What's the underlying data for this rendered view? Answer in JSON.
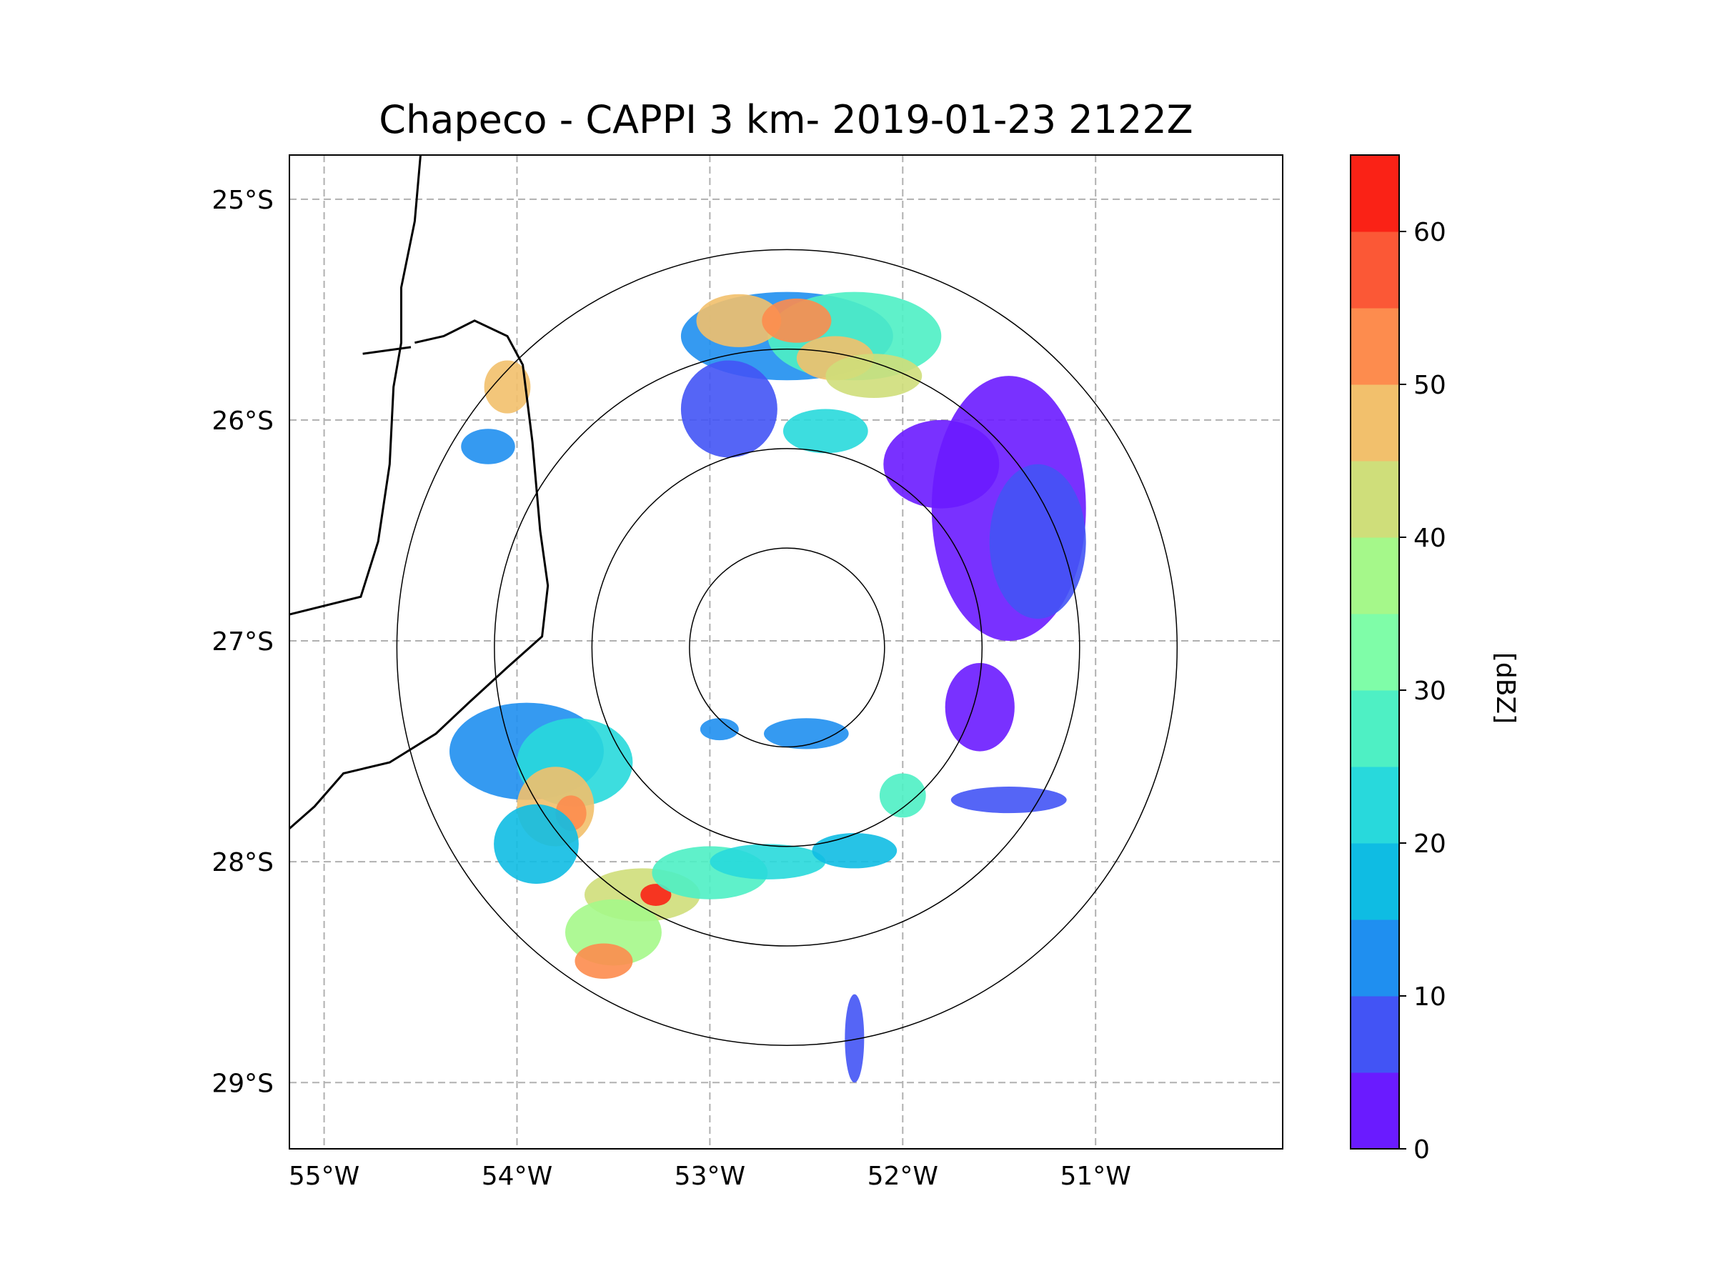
{
  "figure": {
    "title": "Chapeco - CAPPI 3 km- 2019-01-23 2122Z",
    "station": "Chapeco",
    "product": "CAPPI 3 km",
    "timestamp": "2019-01-23 2122Z"
  },
  "map": {
    "lon_range": [
      -55.18,
      -50.03
    ],
    "lat_range": [
      -29.3,
      -24.8
    ],
    "radar_center": {
      "lon": -52.6,
      "lat": -27.03
    },
    "range_rings_km": [
      50,
      100,
      150,
      200
    ],
    "lat_ticks": [
      {
        "value": -25,
        "label": "25°S"
      },
      {
        "value": -26,
        "label": "26°S"
      },
      {
        "value": -27,
        "label": "27°S"
      },
      {
        "value": -28,
        "label": "28°S"
      },
      {
        "value": -29,
        "label": "29°S"
      }
    ],
    "lon_ticks": [
      {
        "value": -55,
        "label": "55°W"
      },
      {
        "value": -54,
        "label": "54°W"
      },
      {
        "value": -53,
        "label": "53°W"
      },
      {
        "value": -52,
        "label": "52°W"
      },
      {
        "value": -51,
        "label": "51°W"
      }
    ],
    "gridlines": true,
    "borders": [
      {
        "name": "argentina-brazil-border",
        "points": [
          [
            -54.5,
            -24.8
          ],
          [
            -54.53,
            -25.1
          ],
          [
            -54.6,
            -25.4
          ],
          [
            -54.6,
            -25.65
          ],
          [
            -54.64,
            -25.85
          ],
          [
            -54.66,
            -26.2
          ],
          [
            -54.72,
            -26.55
          ],
          [
            -54.81,
            -26.8
          ],
          [
            -55.18,
            -26.88
          ]
        ]
      },
      {
        "name": "misiones-outline-border",
        "points": [
          [
            -55.18,
            -27.85
          ],
          [
            -55.05,
            -27.75
          ],
          [
            -54.9,
            -27.6
          ],
          [
            -54.66,
            -27.55
          ],
          [
            -54.42,
            -27.42
          ],
          [
            -54.25,
            -27.28
          ],
          [
            -54.05,
            -27.12
          ],
          [
            -53.87,
            -26.98
          ],
          [
            -53.84,
            -26.75
          ],
          [
            -53.88,
            -26.5
          ],
          [
            -53.92,
            -26.1
          ],
          [
            -53.97,
            -25.75
          ],
          [
            -54.05,
            -25.62
          ],
          [
            -54.22,
            -25.55
          ],
          [
            -54.38,
            -25.62
          ],
          [
            -54.53,
            -25.65
          ]
        ]
      },
      {
        "name": "northeast-argentina-border",
        "points": [
          [
            -54.55,
            -25.67
          ],
          [
            -54.8,
            -25.7
          ]
        ]
      }
    ]
  },
  "reflectivity_cells": [
    {
      "lon": -52.6,
      "lat": -25.62,
      "rx": 0.55,
      "ry": 0.2,
      "dbz": 12
    },
    {
      "lon": -52.25,
      "lat": -25.62,
      "rx": 0.45,
      "ry": 0.2,
      "dbz": 28
    },
    {
      "lon": -52.85,
      "lat": -25.55,
      "rx": 0.22,
      "ry": 0.12,
      "dbz": 48
    },
    {
      "lon": -52.55,
      "lat": -25.55,
      "rx": 0.18,
      "ry": 0.1,
      "dbz": 50
    },
    {
      "lon": -52.35,
      "lat": -25.72,
      "rx": 0.2,
      "ry": 0.1,
      "dbz": 46
    },
    {
      "lon": -52.15,
      "lat": -25.8,
      "rx": 0.25,
      "ry": 0.1,
      "dbz": 40
    },
    {
      "lon": -52.9,
      "lat": -25.95,
      "rx": 0.25,
      "ry": 0.22,
      "dbz": 5
    },
    {
      "lon": -52.4,
      "lat": -26.05,
      "rx": 0.22,
      "ry": 0.1,
      "dbz": 22
    },
    {
      "lon": -51.45,
      "lat": -26.4,
      "rx": 0.4,
      "ry": 0.6,
      "dbz": 3
    },
    {
      "lon": -51.3,
      "lat": -26.55,
      "rx": 0.25,
      "ry": 0.35,
      "dbz": 8
    },
    {
      "lon": -51.8,
      "lat": -26.2,
      "rx": 0.3,
      "ry": 0.2,
      "dbz": 4
    },
    {
      "lon": -54.05,
      "lat": -25.85,
      "rx": 0.12,
      "ry": 0.12,
      "dbz": 46
    },
    {
      "lon": -54.15,
      "lat": -26.12,
      "rx": 0.14,
      "ry": 0.08,
      "dbz": 10
    },
    {
      "lon": -51.6,
      "lat": -27.3,
      "rx": 0.18,
      "ry": 0.2,
      "dbz": 3
    },
    {
      "lon": -53.95,
      "lat": -27.5,
      "rx": 0.4,
      "ry": 0.22,
      "dbz": 14
    },
    {
      "lon": -53.7,
      "lat": -27.55,
      "rx": 0.3,
      "ry": 0.2,
      "dbz": 24
    },
    {
      "lon": -53.8,
      "lat": -27.75,
      "rx": 0.2,
      "ry": 0.18,
      "dbz": 46
    },
    {
      "lon": -53.72,
      "lat": -27.78,
      "rx": 0.08,
      "ry": 0.08,
      "dbz": 52
    },
    {
      "lon": -53.9,
      "lat": -27.92,
      "rx": 0.22,
      "ry": 0.18,
      "dbz": 18
    },
    {
      "lon": -53.35,
      "lat": -28.15,
      "rx": 0.3,
      "ry": 0.12,
      "dbz": 40
    },
    {
      "lon": -53.28,
      "lat": -28.15,
      "rx": 0.08,
      "ry": 0.05,
      "dbz": 60
    },
    {
      "lon": -53.5,
      "lat": -28.32,
      "rx": 0.25,
      "ry": 0.15,
      "dbz": 36
    },
    {
      "lon": -53.55,
      "lat": -28.45,
      "rx": 0.15,
      "ry": 0.08,
      "dbz": 50
    },
    {
      "lon": -53.0,
      "lat": -28.05,
      "rx": 0.3,
      "ry": 0.12,
      "dbz": 28
    },
    {
      "lon": -52.7,
      "lat": -28.0,
      "rx": 0.3,
      "ry": 0.08,
      "dbz": 24
    },
    {
      "lon": -52.25,
      "lat": -27.95,
      "rx": 0.22,
      "ry": 0.08,
      "dbz": 18
    },
    {
      "lon": -52.5,
      "lat": -27.42,
      "rx": 0.22,
      "ry": 0.07,
      "dbz": 14
    },
    {
      "lon": -52.95,
      "lat": -27.4,
      "rx": 0.1,
      "ry": 0.05,
      "dbz": 10
    },
    {
      "lon": -52.0,
      "lat": -27.7,
      "rx": 0.12,
      "ry": 0.1,
      "dbz": 28
    },
    {
      "lon": -51.45,
      "lat": -27.72,
      "rx": 0.3,
      "ry": 0.06,
      "dbz": 8
    },
    {
      "lon": -52.25,
      "lat": -28.8,
      "rx": 0.05,
      "ry": 0.2,
      "dbz": 6
    }
  ],
  "colorbar": {
    "label": "[dBZ]",
    "min": 0,
    "max": 65,
    "tick_values": [
      0,
      10,
      20,
      30,
      40,
      50,
      60
    ],
    "tick_labels": [
      "0",
      "10",
      "20",
      "30",
      "40",
      "50",
      "60"
    ],
    "levels": [
      {
        "from": 0,
        "to": 5,
        "color": "#6a1bff"
      },
      {
        "from": 5,
        "to": 10,
        "color": "#4254f5"
      },
      {
        "from": 10,
        "to": 15,
        "color": "#1f8ff0"
      },
      {
        "from": 15,
        "to": 20,
        "color": "#0fbce3"
      },
      {
        "from": 20,
        "to": 25,
        "color": "#28d9dc"
      },
      {
        "from": 25,
        "to": 30,
        "color": "#4ef0c4"
      },
      {
        "from": 30,
        "to": 35,
        "color": "#7ffda8"
      },
      {
        "from": 35,
        "to": 40,
        "color": "#a5f88a"
      },
      {
        "from": 40,
        "to": 45,
        "color": "#cfde7a"
      },
      {
        "from": 45,
        "to": 50,
        "color": "#f2c06c"
      },
      {
        "from": 50,
        "to": 55,
        "color": "#fd8c4e"
      },
      {
        "from": 55,
        "to": 60,
        "color": "#fb5836"
      },
      {
        "from": 60,
        "to": 65,
        "color": "#fa2216"
      }
    ]
  }
}
